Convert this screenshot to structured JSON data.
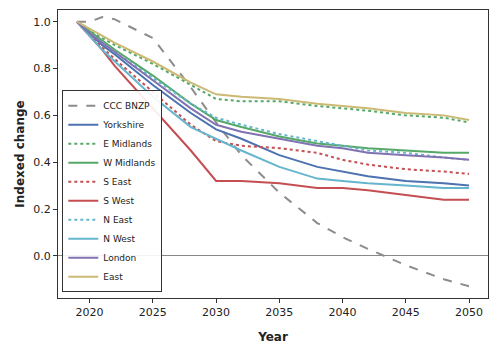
{
  "chart_data": {
    "type": "line",
    "x_label": "Year",
    "y_label": "Indexed change",
    "x": [
      2019,
      2020,
      2021,
      2022,
      2025,
      2028,
      2030,
      2032,
      2035,
      2038,
      2040,
      2042,
      2045,
      2048,
      2050
    ],
    "xlim": [
      2017.5,
      2051.5
    ],
    "xticks": [
      2020,
      2025,
      2030,
      2035,
      2040,
      2045,
      2050
    ],
    "ylim": [
      -0.18,
      1.05
    ],
    "yticks": [
      {
        "value": 0,
        "label": "0.0"
      },
      0.2,
      0.4,
      0.6,
      0.8,
      {
        "value": 1,
        "label": "1.0"
      }
    ],
    "grid": false,
    "legend": "lower left",
    "series": [
      {
        "name": "CCC BNZP",
        "color": "#8c8c8c",
        "line_style": "dashed",
        "values": [
          1.0,
          1.0,
          1.02,
          1.01,
          0.93,
          0.72,
          0.57,
          0.43,
          0.27,
          0.14,
          0.08,
          0.03,
          -0.04,
          -0.1,
          -0.13
        ]
      },
      {
        "name": "Yorkshire",
        "color": "#4c72b0",
        "line_style": "solid",
        "values": [
          1.0,
          0.95,
          0.9,
          0.86,
          0.73,
          0.61,
          0.54,
          0.5,
          0.43,
          0.38,
          0.36,
          0.34,
          0.32,
          0.31,
          0.3
        ]
      },
      {
        "name": "E Midlands",
        "color": "#55a868",
        "line_style": "dotted",
        "values": [
          1.0,
          0.96,
          0.93,
          0.9,
          0.82,
          0.73,
          0.67,
          0.66,
          0.66,
          0.64,
          0.63,
          0.62,
          0.6,
          0.59,
          0.57
        ]
      },
      {
        "name": "W Midlands",
        "color": "#55a868",
        "line_style": "solid",
        "values": [
          1.0,
          0.96,
          0.92,
          0.88,
          0.77,
          0.65,
          0.58,
          0.55,
          0.51,
          0.48,
          0.47,
          0.46,
          0.45,
          0.44,
          0.44
        ]
      },
      {
        "name": "S East",
        "color": "#c44e52",
        "line_style": "dotted",
        "values": [
          1.0,
          0.94,
          0.89,
          0.84,
          0.7,
          0.56,
          0.49,
          0.47,
          0.46,
          0.44,
          0.41,
          0.39,
          0.37,
          0.36,
          0.35
        ]
      },
      {
        "name": "S West",
        "color": "#c44e52",
        "line_style": "solid",
        "values": [
          1.0,
          0.94,
          0.88,
          0.81,
          0.63,
          0.45,
          0.32,
          0.32,
          0.31,
          0.29,
          0.29,
          0.28,
          0.26,
          0.24,
          0.24
        ]
      },
      {
        "name": "N East",
        "color": "#64b5cd",
        "line_style": "dotted",
        "values": [
          1.0,
          0.95,
          0.91,
          0.87,
          0.76,
          0.65,
          0.59,
          0.56,
          0.52,
          0.49,
          0.47,
          0.45,
          0.44,
          0.42,
          0.41
        ]
      },
      {
        "name": "N West",
        "color": "#64b5cd",
        "line_style": "solid",
        "values": [
          1.0,
          0.94,
          0.88,
          0.83,
          0.68,
          0.55,
          0.5,
          0.45,
          0.38,
          0.33,
          0.32,
          0.31,
          0.3,
          0.29,
          0.29
        ]
      },
      {
        "name": "London",
        "color": "#8172b2",
        "line_style": "solid",
        "values": [
          1.0,
          0.95,
          0.91,
          0.87,
          0.75,
          0.63,
          0.56,
          0.53,
          0.5,
          0.47,
          0.46,
          0.44,
          0.43,
          0.42,
          0.41
        ]
      },
      {
        "name": "East",
        "color": "#ccb974",
        "line_style": "solid",
        "values": [
          1.0,
          0.97,
          0.94,
          0.91,
          0.83,
          0.74,
          0.69,
          0.68,
          0.67,
          0.65,
          0.64,
          0.63,
          0.61,
          0.6,
          0.58
        ]
      }
    ]
  }
}
